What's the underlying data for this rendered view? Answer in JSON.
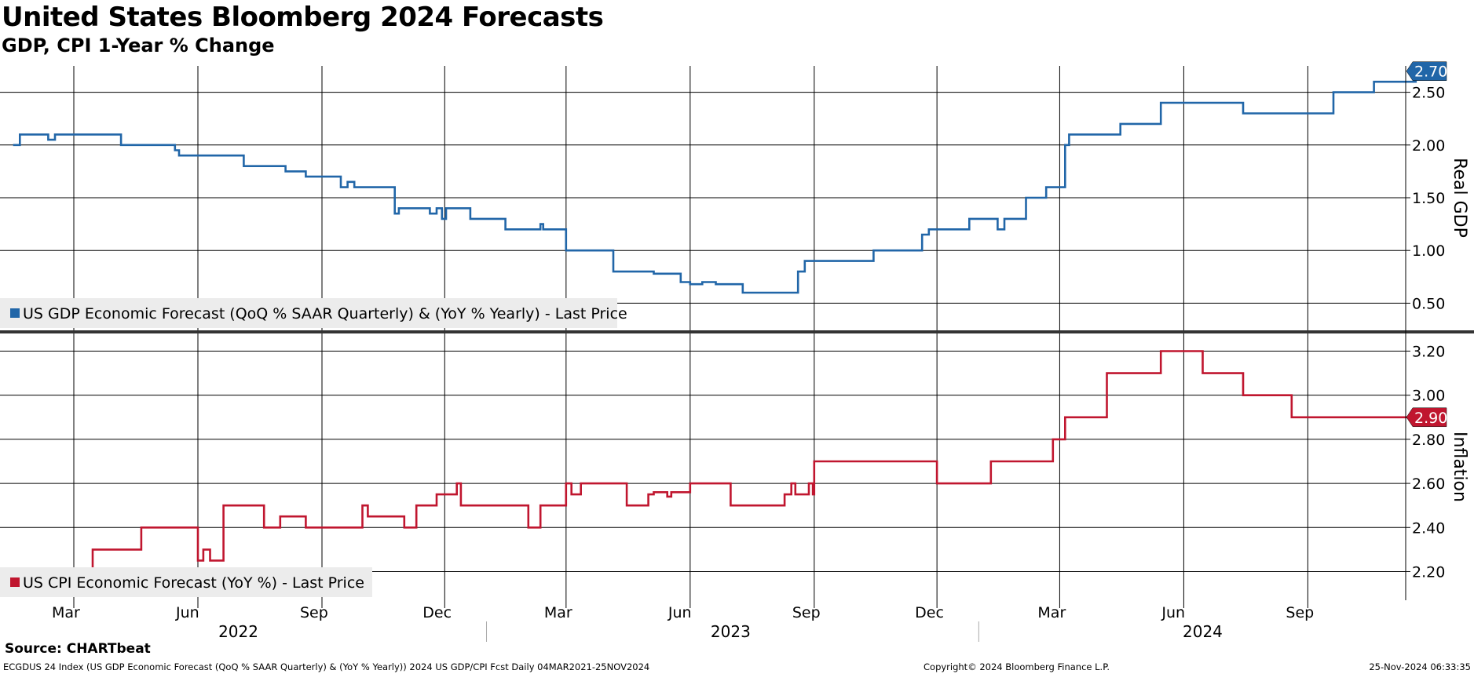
{
  "header": {
    "title": "United States Bloomberg 2024 Forecasts",
    "subtitle": "GDP, CPI 1-Year % Change"
  },
  "footer": {
    "source": "Source: CHARTbeat",
    "left": "ECGDUS 24 Index (US GDP Economic Forecast (QoQ % SAAR Quarterly) & (YoY % Yearly)) 2024 US GDP/CPI Fcst  Daily 04MAR2021-25NOV2024",
    "copyright": "Copyright© 2024 Bloomberg Finance L.P.",
    "timestamp": "25-Nov-2024 06:33:35"
  },
  "colors": {
    "gdp": "#2166a8",
    "cpi": "#c0162f",
    "grid": "#000000",
    "legend_bg": "#ececec"
  },
  "x_axis": {
    "months": [
      {
        "label": "Mar",
        "date": "2022-03-01"
      },
      {
        "label": "Jun",
        "date": "2022-06-01"
      },
      {
        "label": "Sep",
        "date": "2022-09-01"
      },
      {
        "label": "Dec",
        "date": "2022-12-01"
      },
      {
        "label": "Mar",
        "date": "2023-03-01"
      },
      {
        "label": "Jun",
        "date": "2023-06-01"
      },
      {
        "label": "Sep",
        "date": "2023-09-01"
      },
      {
        "label": "Dec",
        "date": "2023-12-01"
      },
      {
        "label": "Mar",
        "date": "2024-03-01"
      },
      {
        "label": "Jun",
        "date": "2024-06-01"
      },
      {
        "label": "Sep",
        "date": "2024-09-01"
      }
    ],
    "years": [
      {
        "label": "2022",
        "center": "2022-07-01"
      },
      {
        "label": "2023",
        "center": "2023-07-01"
      },
      {
        "label": "2024",
        "center": "2024-06-15"
      }
    ],
    "year_separators": [
      "2023-01-01",
      "2024-01-01"
    ]
  },
  "chart_data": [
    {
      "type": "line",
      "panel": "top",
      "ylabel": "Real GDP",
      "yticks": [
        0.5,
        1.0,
        1.5,
        2.0,
        2.5
      ],
      "ytick_labels": [
        "0.50",
        "1.00",
        "1.50",
        "2.00",
        "2.50"
      ],
      "ylim": [
        0.25,
        2.75
      ],
      "last_value_label": "2.70",
      "series": [
        {
          "name": "US GDP Economic Forecast (QoQ % SAAR Quarterly) & (YoY % Yearly) - Last Price",
          "legend": "US GDP Economic Forecast (QoQ % SAAR Quarterly) & (YoY % Yearly) - Last Price",
          "step": true,
          "points": [
            [
              "2022-01-15",
              2.0
            ],
            [
              "2022-01-20",
              2.1
            ],
            [
              "2022-02-10",
              2.05
            ],
            [
              "2022-02-15",
              2.1
            ],
            [
              "2022-04-05",
              2.0
            ],
            [
              "2022-05-15",
              1.95
            ],
            [
              "2022-05-18",
              1.9
            ],
            [
              "2022-07-05",
              1.8
            ],
            [
              "2022-08-05",
              1.75
            ],
            [
              "2022-08-20",
              1.7
            ],
            [
              "2022-09-15",
              1.6
            ],
            [
              "2022-09-20",
              1.65
            ],
            [
              "2022-09-25",
              1.6
            ],
            [
              "2022-10-25",
              1.35
            ],
            [
              "2022-10-28",
              1.4
            ],
            [
              "2022-11-20",
              1.35
            ],
            [
              "2022-11-25",
              1.4
            ],
            [
              "2022-11-29",
              1.3
            ],
            [
              "2022-12-02",
              1.4
            ],
            [
              "2022-12-20",
              1.3
            ],
            [
              "2023-01-15",
              1.2
            ],
            [
              "2023-02-10",
              1.25
            ],
            [
              "2023-02-12",
              1.2
            ],
            [
              "2023-03-01",
              1.0
            ],
            [
              "2023-04-05",
              0.8
            ],
            [
              "2023-05-05",
              0.78
            ],
            [
              "2023-05-25",
              0.7
            ],
            [
              "2023-06-01",
              0.68
            ],
            [
              "2023-06-10",
              0.7
            ],
            [
              "2023-06-20",
              0.68
            ],
            [
              "2023-07-10",
              0.6
            ],
            [
              "2023-08-20",
              0.8
            ],
            [
              "2023-08-25",
              0.9
            ],
            [
              "2023-10-15",
              1.0
            ],
            [
              "2023-11-20",
              1.15
            ],
            [
              "2023-11-25",
              1.2
            ],
            [
              "2023-12-25",
              1.3
            ],
            [
              "2024-01-15",
              1.2
            ],
            [
              "2024-01-20",
              1.3
            ],
            [
              "2024-02-05",
              1.5
            ],
            [
              "2024-02-20",
              1.6
            ],
            [
              "2024-03-05",
              2.0
            ],
            [
              "2024-03-08",
              2.1
            ],
            [
              "2024-04-15",
              2.2
            ],
            [
              "2024-05-15",
              2.4
            ],
            [
              "2024-07-15",
              2.3
            ],
            [
              "2024-09-20",
              2.5
            ],
            [
              "2024-10-20",
              2.6
            ],
            [
              "2024-11-20",
              2.7
            ],
            [
              "2024-11-25",
              2.7
            ]
          ]
        }
      ]
    },
    {
      "type": "line",
      "panel": "bottom",
      "ylabel": "Inflation",
      "yticks": [
        2.2,
        2.4,
        2.6,
        2.8,
        3.0,
        3.2
      ],
      "ytick_labels": [
        "2.20",
        "2.40",
        "2.60",
        "2.80",
        "3.00",
        "3.20"
      ],
      "ylim": [
        2.07,
        3.28
      ],
      "last_value_label": "2.90",
      "series": [
        {
          "name": "US CPI Economic Forecast (YoY %) - Last Price",
          "legend": "US CPI Economic Forecast (YoY %) - Last Price",
          "step": true,
          "points": [
            [
              "2022-01-15",
              2.2
            ],
            [
              "2022-03-15",
              2.3
            ],
            [
              "2022-04-20",
              2.4
            ],
            [
              "2022-06-01",
              2.25
            ],
            [
              "2022-06-05",
              2.3
            ],
            [
              "2022-06-10",
              2.25
            ],
            [
              "2022-06-20",
              2.5
            ],
            [
              "2022-07-20",
              2.4
            ],
            [
              "2022-08-01",
              2.45
            ],
            [
              "2022-08-20",
              2.4
            ],
            [
              "2022-10-01",
              2.5
            ],
            [
              "2022-10-05",
              2.45
            ],
            [
              "2022-11-01",
              2.4
            ],
            [
              "2022-11-10",
              2.5
            ],
            [
              "2022-11-25",
              2.55
            ],
            [
              "2022-12-10",
              2.6
            ],
            [
              "2022-12-13",
              2.5
            ],
            [
              "2023-02-01",
              2.4
            ],
            [
              "2023-02-10",
              2.5
            ],
            [
              "2023-03-01",
              2.6
            ],
            [
              "2023-03-05",
              2.55
            ],
            [
              "2023-03-12",
              2.6
            ],
            [
              "2023-04-15",
              2.5
            ],
            [
              "2023-05-01",
              2.55
            ],
            [
              "2023-05-05",
              2.56
            ],
            [
              "2023-05-15",
              2.54
            ],
            [
              "2023-05-18",
              2.56
            ],
            [
              "2023-06-01",
              2.6
            ],
            [
              "2023-07-01",
              2.5
            ],
            [
              "2023-08-10",
              2.55
            ],
            [
              "2023-08-15",
              2.6
            ],
            [
              "2023-08-18",
              2.55
            ],
            [
              "2023-08-28",
              2.6
            ],
            [
              "2023-08-31",
              2.55
            ],
            [
              "2023-09-01",
              2.7
            ],
            [
              "2023-12-01",
              2.6
            ],
            [
              "2024-01-10",
              2.7
            ],
            [
              "2024-02-25",
              2.8
            ],
            [
              "2024-03-05",
              2.9
            ],
            [
              "2024-04-05",
              3.1
            ],
            [
              "2024-05-15",
              3.2
            ],
            [
              "2024-06-15",
              3.1
            ],
            [
              "2024-07-15",
              3.0
            ],
            [
              "2024-08-20",
              2.9
            ],
            [
              "2024-11-25",
              2.9
            ]
          ]
        }
      ]
    }
  ]
}
